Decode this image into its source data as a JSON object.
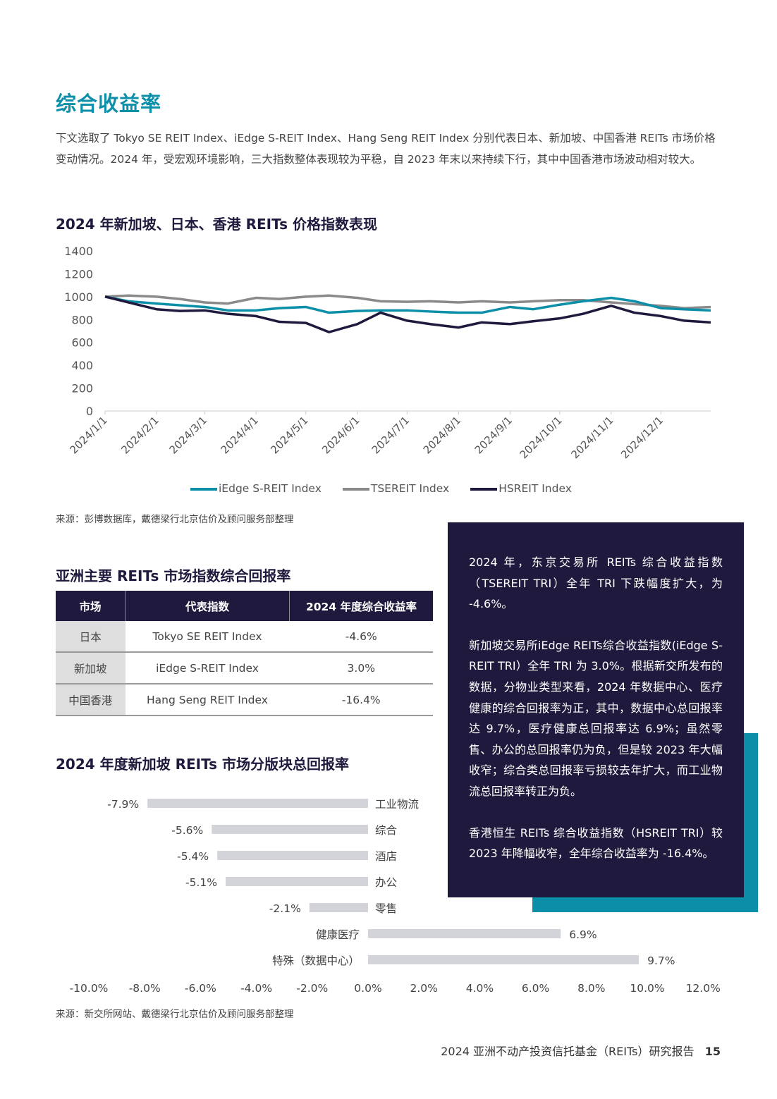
{
  "title": "综合收益率",
  "intro": "下文选取了 Tokyo SE REIT Index、iEdge S-REIT Index、Hang Seng REIT Index 分别代表日本、新加坡、中国香港 REITs 市场价格变动情况。2024 年，受宏观环境影响，三大指数整体表现较为平稳，自 2023 年末以来持续下行，其中中国香港市场波动相对较大。",
  "chart1_heading": "2024 年新加坡、日本、香港 REITs 价格指数表现",
  "chart1_source": "来源：彭博数据库，戴德梁行北京估价及顾问服务部整理",
  "table_heading": "亚洲主要 REITs 市场指数综合回报率",
  "table": {
    "headers": [
      "市场",
      "代表指数",
      "2024 年度综合收益率"
    ],
    "rows": [
      [
        "日本",
        "Tokyo SE REIT Index",
        "-4.6%"
      ],
      [
        "新加坡",
        "iEdge S-REIT Index",
        "3.0%"
      ],
      [
        "中国香港",
        "Hang Seng REIT Index",
        "-16.4%"
      ]
    ]
  },
  "chart2_heading": "2024 年度新加坡 REITs 市场分版块总回报率",
  "chart2_source": "来源：新交所网站、戴德梁行北京估价及顾问服务部整理",
  "sidebar": {
    "p1": "2024 年，东京交易所 REITs 综合收益指数（TSEREIT TRI）全年 TRI 下跌幅度扩大，为 -4.6%。",
    "p2": "新加坡交易所iEdge REITs综合收益指数(iEdge S-REIT TRI）全年 TRI 为 3.0%。根据新交所发布的数据，分物业类型来看，2024 年数据中心、医疗健康的综合回报率为正，其中，数据中心总回报率达 9.7%，医疗健康总回报率达 6.9%；虽然零售、办公的总回报率仍为负，但是较 2023 年大幅收窄；综合类总回报率亏损较去年扩大，而工业物流总回报率转正为负。",
    "p3": "香港恒生 REITs 综合收益指数（HSREIT TRI）较 2023 年降幅收窄，全年综合收益率为 -16.4%。"
  },
  "footer": {
    "text": "2024 亚洲不动产投资信托基金（REITs）研究报告",
    "page": "15"
  },
  "colors": {
    "teal": "#0b8fa8",
    "navy": "#1f1a3d",
    "gray": "#8a8a8a",
    "bar": "#d3d3da"
  },
  "chart_data": [
    {
      "type": "line",
      "ylim": [
        0,
        1400
      ],
      "yticks": [
        "0",
        "200",
        "400",
        "600",
        "800",
        "1000",
        "1200",
        "1400"
      ],
      "xticks": [
        "2024/1/1",
        "2024/2/1",
        "2024/3/1",
        "2024/4/1",
        "2024/5/1",
        "2024/6/1",
        "2024/7/1",
        "2024/8/1",
        "2024/9/1",
        "2024/10/1",
        "2024/11/1",
        "2024/12/1"
      ],
      "x": [
        "2024-01-01",
        "2024-01-15",
        "2024-02-01",
        "2024-02-15",
        "2024-03-01",
        "2024-03-15",
        "2024-04-01",
        "2024-04-15",
        "2024-05-01",
        "2024-05-15",
        "2024-06-01",
        "2024-06-15",
        "2024-07-01",
        "2024-07-15",
        "2024-08-01",
        "2024-08-15",
        "2024-09-01",
        "2024-09-15",
        "2024-10-01",
        "2024-10-15",
        "2024-11-01",
        "2024-11-15",
        "2024-12-01",
        "2024-12-15",
        "2024-12-31"
      ],
      "legend": "bottom",
      "series": [
        {
          "name": "iEdge S-REIT Index",
          "color": "#0b8fa8",
          "values": [
            1000,
            960,
            940,
            925,
            910,
            880,
            880,
            900,
            910,
            860,
            875,
            880,
            880,
            870,
            860,
            860,
            910,
            890,
            930,
            960,
            990,
            960,
            900,
            890,
            880
          ]
        },
        {
          "name": "TSEREIT Index",
          "color": "#8a8a8a",
          "values": [
            1000,
            1010,
            1000,
            980,
            950,
            940,
            990,
            980,
            1000,
            1010,
            990,
            960,
            955,
            960,
            950,
            960,
            950,
            960,
            970,
            970,
            950,
            935,
            920,
            900,
            910
          ]
        },
        {
          "name": "HSREIT Index",
          "color": "#1f1a3d",
          "values": [
            1000,
            950,
            890,
            875,
            880,
            850,
            830,
            780,
            770,
            690,
            760,
            860,
            790,
            760,
            730,
            775,
            760,
            785,
            810,
            850,
            920,
            860,
            830,
            790,
            775
          ]
        }
      ]
    },
    {
      "type": "bar",
      "orientation": "horizontal",
      "categories": [
        "工业物流",
        "综合",
        "酒店",
        "办公",
        "零售",
        "健康医疗",
        "特殊（数据中心）"
      ],
      "values": [
        -7.9,
        -5.6,
        -5.4,
        -5.1,
        -2.1,
        6.9,
        9.7
      ],
      "labels": [
        "-7.9%",
        "-5.6%",
        "-5.4%",
        "-5.1%",
        "-2.1%",
        "6.9%",
        "9.7%"
      ],
      "xlim": [
        -10,
        12
      ],
      "xticks": [
        "-10.0%",
        "-8.0%",
        "-6.0%",
        "-4.0%",
        "-2.0%",
        "0.0%",
        "2.0%",
        "4.0%",
        "6.0%",
        "8.0%",
        "10.0%",
        "12.0%"
      ]
    }
  ]
}
